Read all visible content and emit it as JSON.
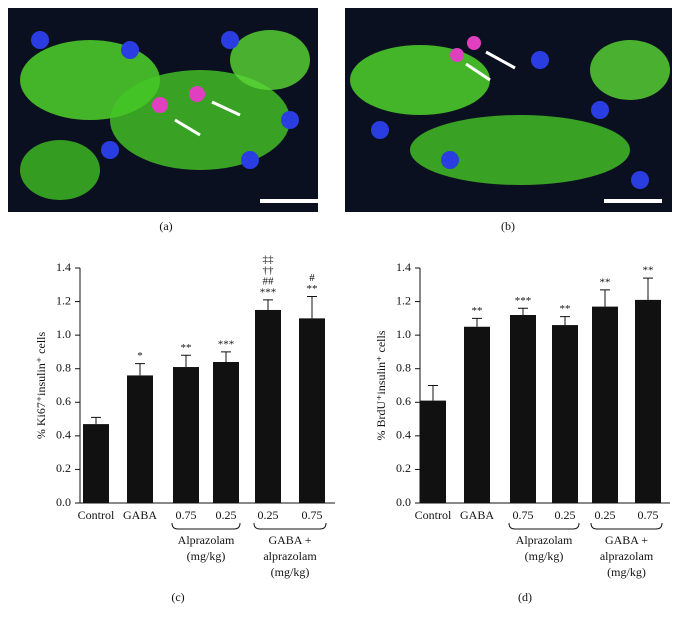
{
  "panels": [
    "(a)",
    "(b)"
  ],
  "chart_data": [
    {
      "type": "bar",
      "panel_label": "(c)",
      "y_label": "% Ki67⁺insulin⁺ cells",
      "categories": [
        "Control",
        "GABA",
        "0.75",
        "0.25",
        "0.25",
        "0.75"
      ],
      "values": [
        0.47,
        0.76,
        0.81,
        0.84,
        1.15,
        1.1
      ],
      "errors": [
        0.04,
        0.07,
        0.07,
        0.06,
        0.06,
        0.13
      ],
      "annotations": [
        null,
        [
          "*"
        ],
        [
          "**"
        ],
        [
          "***"
        ],
        [
          "‡‡",
          "††",
          "##",
          "***"
        ],
        [
          "#",
          "**"
        ]
      ],
      "groups": [
        [
          "Alprazolam",
          "(mg/kg)"
        ],
        [
          "GABA +",
          "alprazolam",
          "(mg/kg)"
        ]
      ],
      "color": "#111111",
      "ylim": [
        0,
        1.4
      ],
      "yticks": [
        {
          "value": 0,
          "label": "0.0"
        },
        0.2,
        0.4,
        0.6,
        0.8,
        {
          "value": 1,
          "label": "1.0"
        },
        1.2,
        1.4
      ]
    },
    {
      "type": "bar",
      "panel_label": "(d)",
      "y_label": "% BrdU⁺insulin⁺ cells",
      "categories": [
        "Control",
        "GABA",
        "0.75",
        "0.25",
        "0.25",
        "0.75"
      ],
      "values": [
        0.61,
        1.05,
        1.12,
        1.06,
        1.17,
        1.21
      ],
      "errors": [
        0.09,
        0.05,
        0.04,
        0.05,
        0.1,
        0.13
      ],
      "annotations": [
        null,
        [
          "**"
        ],
        [
          "***"
        ],
        [
          "**"
        ],
        [
          "**"
        ],
        [
          "**"
        ]
      ],
      "groups": [
        [
          "Alprazolam",
          "(mg/kg)"
        ],
        [
          "GABA +",
          "alprazolam",
          "(mg/kg)"
        ]
      ],
      "color": "#111111",
      "ylim": [
        0,
        1.4
      ],
      "yticks": [
        {
          "value": 0,
          "label": "0.0"
        },
        0.2,
        0.4,
        0.6,
        0.8,
        {
          "value": 1,
          "label": "1.0"
        },
        1.2,
        1.4
      ]
    }
  ]
}
